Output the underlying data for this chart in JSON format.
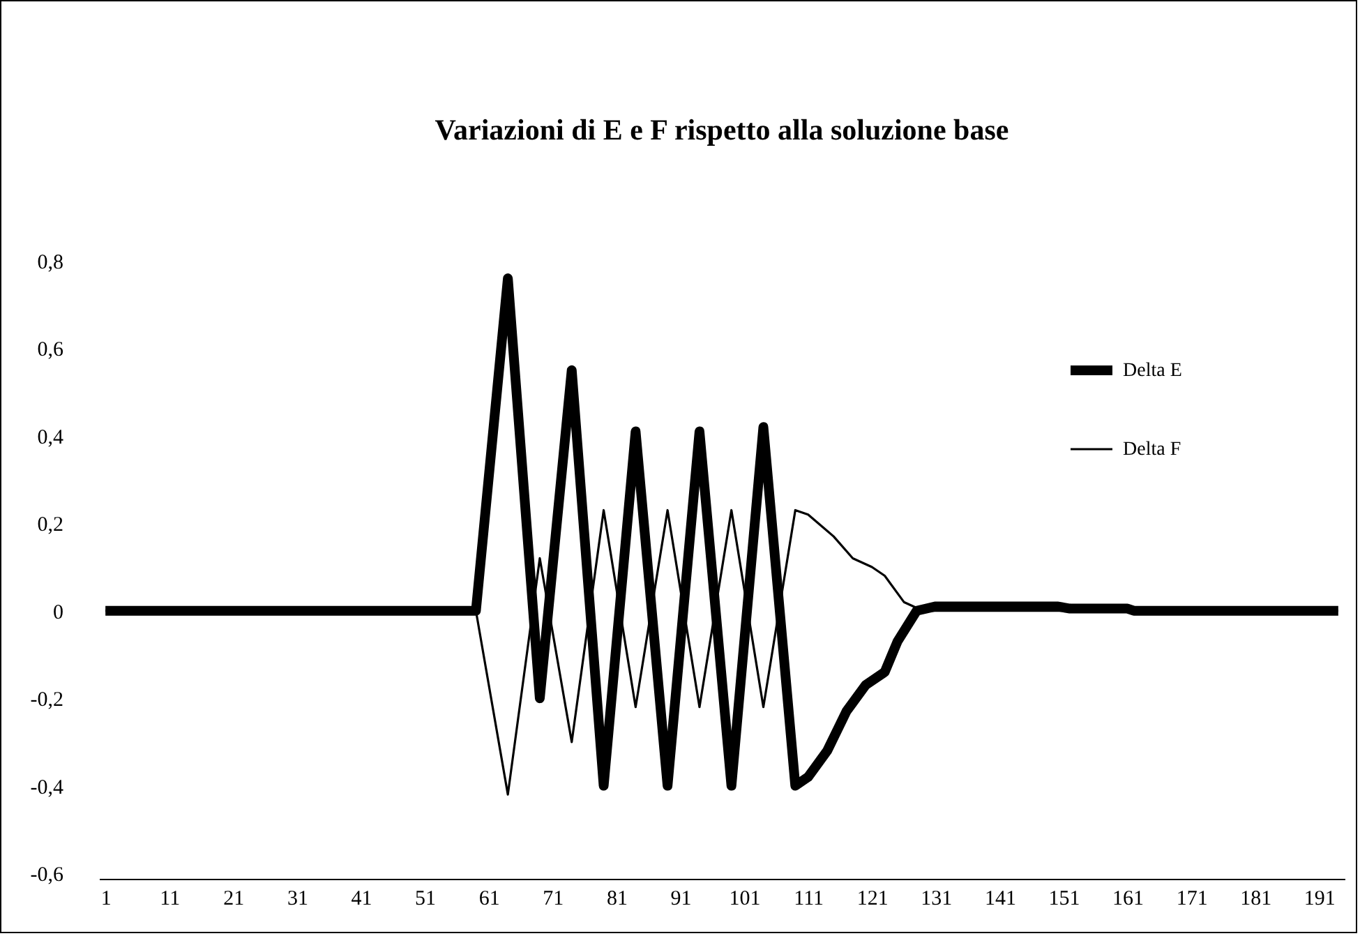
{
  "chart_data": {
    "type": "line",
    "title": "Variazioni di E e F rispetto alla soluzione base",
    "xlim": [
      0,
      195
    ],
    "xticks": [
      1,
      11,
      21,
      31,
      41,
      51,
      61,
      71,
      81,
      91,
      101,
      111,
      121,
      131,
      141,
      151,
      161,
      171,
      181,
      191
    ],
    "ylim": [
      -0.6,
      0.8
    ],
    "yticks": [
      {
        "value": -0.6,
        "label": "-0,6"
      },
      {
        "value": -0.4,
        "label": "-0,4"
      },
      {
        "value": -0.2,
        "label": "-0,2"
      },
      0,
      {
        "value": 0.2,
        "label": "0,2"
      },
      {
        "value": 0.4,
        "label": "0,4"
      },
      {
        "value": 0.6,
        "label": "0,6"
      },
      {
        "value": 0.8,
        "label": "0,8"
      }
    ],
    "grid": false,
    "legend": "right",
    "series": [
      {
        "name": "Delta E",
        "color": "#000000",
        "x": [
          1,
          59,
          64,
          69,
          74,
          79,
          84,
          89,
          94,
          99,
          104,
          109,
          111,
          114,
          117,
          120,
          123,
          125,
          128,
          131,
          150,
          152,
          161,
          162,
          194
        ],
        "values": [
          0,
          0,
          0.76,
          -0.2,
          0.55,
          -0.4,
          0.41,
          -0.4,
          0.41,
          -0.4,
          0.42,
          -0.4,
          -0.38,
          -0.32,
          -0.23,
          -0.17,
          -0.14,
          -0.07,
          0,
          0.01,
          0.01,
          0.005,
          0.005,
          0,
          0
        ]
      },
      {
        "name": "Delta F",
        "color": "#000000",
        "x": [
          1,
          59,
          64,
          69,
          74,
          79,
          84,
          89,
          94,
          99,
          104,
          109,
          111,
          115,
          118,
          121,
          123,
          126,
          129,
          194
        ],
        "values": [
          0,
          0,
          -0.42,
          0.12,
          -0.3,
          0.23,
          -0.22,
          0.23,
          -0.22,
          0.23,
          -0.22,
          0.23,
          0.22,
          0.17,
          0.12,
          0.1,
          0.08,
          0.02,
          0,
          0
        ]
      }
    ]
  }
}
